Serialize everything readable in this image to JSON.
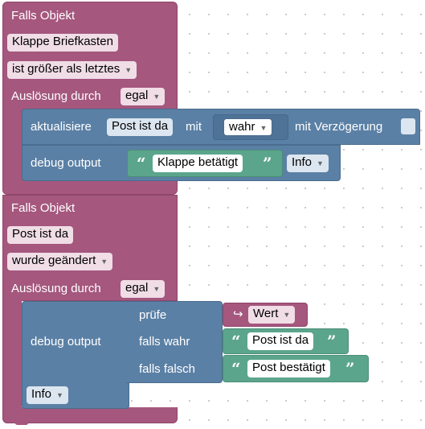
{
  "block1": {
    "title": "Falls Objekt",
    "object": "Klappe Briefkasten",
    "condition": "ist größer als letztes",
    "trigger_label": "Auslösung durch",
    "trigger_value": "egal",
    "update": {
      "label": "aktualisiere",
      "object": "Post ist da",
      "with_label": "mit",
      "value": "wahr",
      "delay_label": "mit Verzögerung"
    },
    "debug": {
      "label": "debug output",
      "text": "Klappe betätigt",
      "level": "Info"
    }
  },
  "block2": {
    "title": "Falls Objekt",
    "object": "Post ist da",
    "condition": "wurde geändert",
    "trigger_label": "Auslösung durch",
    "trigger_value": "egal",
    "debug": {
      "label": "debug output",
      "level": "Info",
      "check_label": "prüfe",
      "check_value": "Wert",
      "if_true_label": "falls wahr",
      "if_true_text": "Post ist da",
      "if_false_label": "falls falsch",
      "if_false_text": "Post bestätigt"
    }
  },
  "icons": {
    "dropdown": "triangle-down-icon",
    "quote_open": "quote-open-icon",
    "quote_close": "quote-close-icon",
    "value_arrow": "return-arrow-icon"
  },
  "colors": {
    "event": "#a5577e",
    "action": "#5b80a5",
    "text": "#5ba58c"
  }
}
